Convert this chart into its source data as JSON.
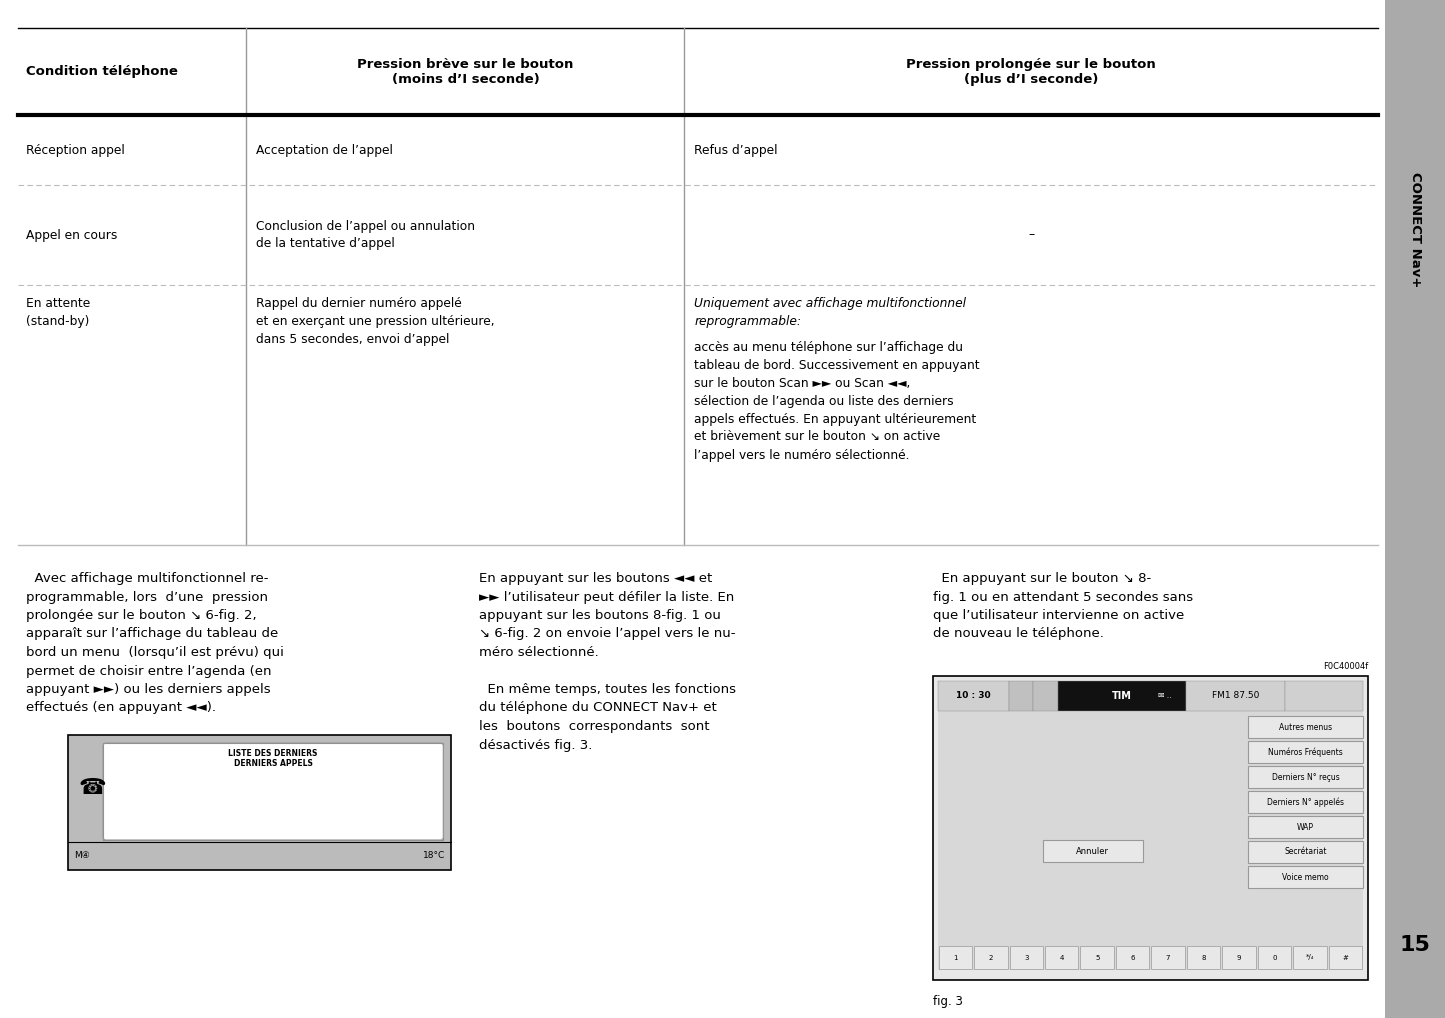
{
  "page_bg": "#ffffff",
  "sidebar_bg": "#aaaaaa",
  "sidebar_text": "CONNECT Nav+",
  "sidebar_page_num": "15",
  "table_header": [
    "Condition téléphone",
    "Pression brève sur le bouton\n(moins d’I seconde)",
    "Pression prolongée sur le bouton\n(plus d’I seconde)"
  ],
  "row0_col0": "Réception appel",
  "row0_col1": "Acceptation de l’appel",
  "row0_col2": "Refus d’appel",
  "row1_col0": "Appel en cours",
  "row1_col1": "Conclusion de l’appel ou annulation\nde la tentative d’appel",
  "row1_col2": "–",
  "row2_col0": "En attente\n(stand-by)",
  "row2_col1": "Rappel du dernier numéro appelé\net en exerçant une pression ultérieure,\ndans 5 secondes, envoi d’appel",
  "row2_col2_italic": "Uniquement avec affichage multifonctionnel\nreprogrammable:",
  "row2_col2_normal": "accès au menu téléphone sur l’affichage du\ntableau de bord. Successivement en appuyant\nsur le bouton Scan ►► ou Scan ◄◄,\nsélection de l’agenda ou liste des derniers\nappels effectués. En appuyant ultérieurement\net brièvement sur le bouton ↘ on active\nl’appel vers le numéro sélectionné.",
  "para1_line1": "  Avec affichage multifonctionnel re-",
  "para1_line2": "programmable, lors  d’une  pression",
  "para1_line3": "prolongée sur le bouton ↘ 6-fig. 2,",
  "para1_line4": "apparaît sur l’affichage du tableau de",
  "para1_line5": "bord un menu  (lorsqu’il est prévu) qui",
  "para1_line6": "permet de choisir entre l’agenda (en",
  "para1_line7": "appuyant ►►) ou les derniers appels",
  "para1_line8": "effectués (en appuyant ◄◄).",
  "para2_line1": "En appuyant sur les boutons ◄◄ et",
  "para2_line2": "►► l’utilisateur peut défiler la liste. En",
  "para2_line3": "appuyant sur les boutons 8-fig. 1 ou",
  "para2_line4": "↘ 6-fig. 2 on envoie l’appel vers le nu-",
  "para2_line5": "méro sélectionné.",
  "para2_line6": "",
  "para2_line7": "  En même temps, toutes les fonctions",
  "para2_line8": "du téléphone du CONNECT Nav+ et",
  "para2_line9": "les  boutons  correspondants  sont",
  "para2_line10": "désactivés fig. 3.",
  "para3_line1": "  En appuyant sur le bouton ↘ 8-",
  "para3_line2": "fig. 1 ou en attendant 5 secondes sans",
  "para3_line3": "que l’utilisateur intervienne on active",
  "para3_line4": "de nouveau le téléphone.",
  "btn_labels": [
    "Autres menus",
    "Numéros Fréquents",
    "Derniers N° reçus",
    "Derniers N° appelés",
    "WAP",
    "Secrétariat",
    "Voice memo"
  ],
  "num_keys": [
    "1",
    "2",
    "3",
    "4",
    "5",
    "6",
    "7",
    "8",
    "9",
    "0",
    "*/₄",
    "#"
  ]
}
